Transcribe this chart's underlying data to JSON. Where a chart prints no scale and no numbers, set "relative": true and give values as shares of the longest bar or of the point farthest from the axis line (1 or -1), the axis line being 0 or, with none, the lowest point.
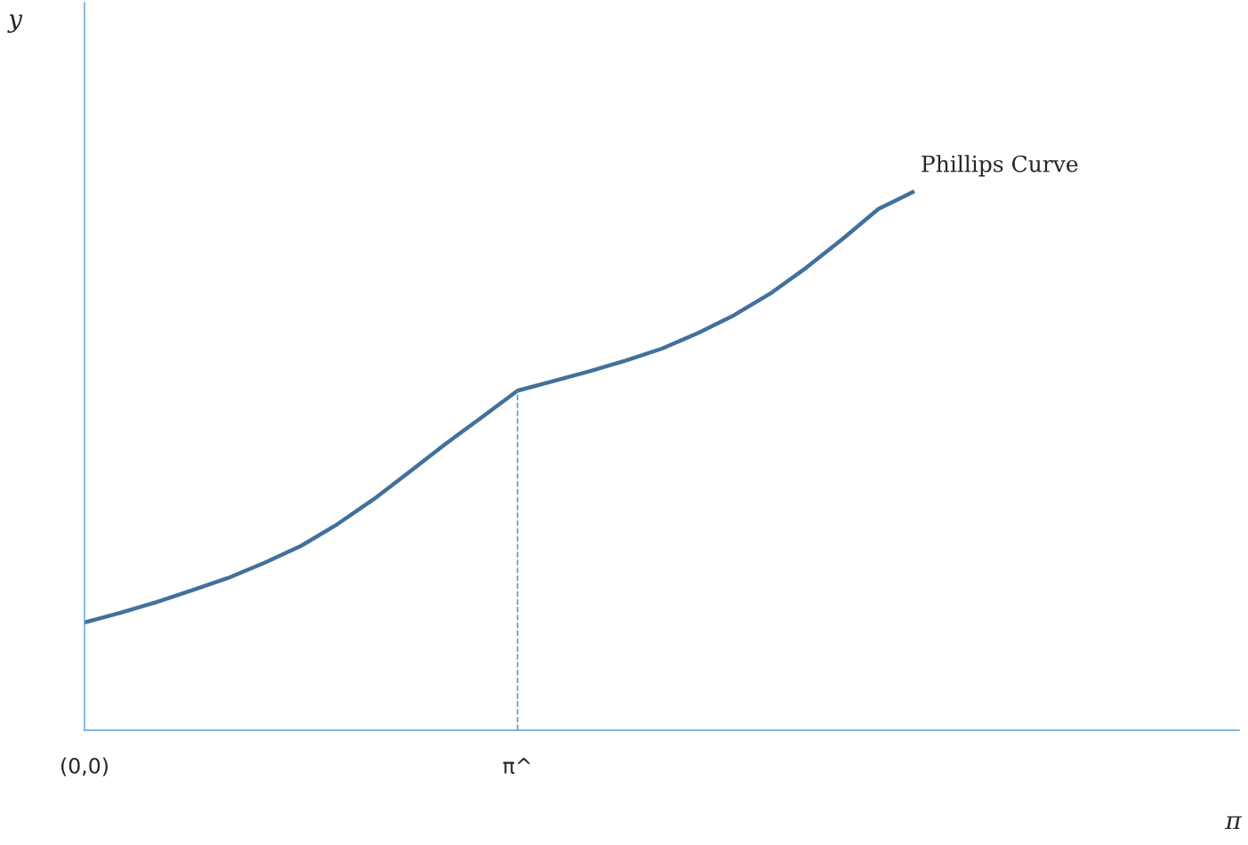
{
  "chart_data": {
    "type": "line",
    "relative": true,
    "xlabel": "π",
    "categories": [
      "(0,0)",
      null,
      null,
      null,
      null,
      null,
      null,
      null,
      null,
      null,
      null,
      null,
      "π^",
      null,
      null,
      null,
      null,
      null,
      null,
      null,
      null,
      null,
      null,
      null,
      null,
      null,
      null,
      null,
      null,
      null,
      null,
      null,
      null
    ],
    "series": [
      {
        "color": "#41719c",
        "values": [
          0.2,
          0.218,
          0.238,
          0.26,
          0.283,
          0.311,
          0.342,
          0.382,
          0.428,
          0.479,
          0.531,
          0.58,
          0.63,
          0.648,
          0.666,
          0.686,
          0.708,
          0.737,
          0.77,
          0.81,
          0.858,
          0.911,
          0.967,
          1.0,
          null,
          null,
          null,
          null,
          null,
          null,
          null,
          null,
          null
        ]
      }
    ],
    "ref_lines": [
      {
        "axis": "x",
        "value": "π^",
        "color": "#5b9bd5",
        "line_style": "dashed"
      }
    ],
    "annotations": [
      "Phillips Curve",
      "y"
    ],
    "grid": false,
    "legend": false,
    "marker": "none",
    "line_style": "solid"
  }
}
